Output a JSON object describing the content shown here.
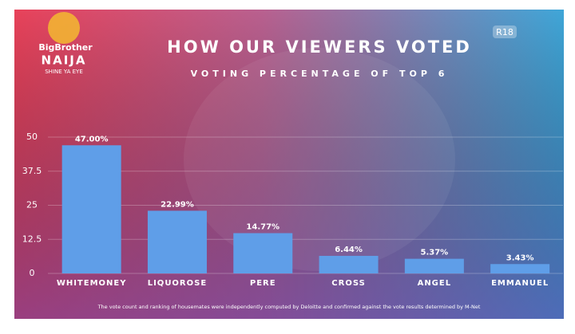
{
  "chart_data": {
    "type": "bar",
    "title": "HOW OUR VIEWERS VOTED",
    "subtitle": "VOTING PERCENTAGE OF TOP 6",
    "logo": [
      "BigBrother",
      "NAIJA",
      "SHINE YA EYE"
    ],
    "rating": "R18",
    "footnote": "The vote count and ranking of housemates were independently computed by Deloitte and confirmed against the vote results determined by M-Net",
    "categories": [
      "WHITEMONEY",
      "LIQUOROSE",
      "PERE",
      "CROSS",
      "ANGEL",
      "EMMANUEL"
    ],
    "values": [
      47.0,
      22.99,
      14.77,
      6.44,
      5.37,
      3.43
    ],
    "value_labels": [
      "47.00%",
      "22.99%",
      "14.77%",
      "6.44%",
      "5.37%",
      "3.43%"
    ],
    "color": "#5f9ee8",
    "ylim": [
      0,
      50
    ],
    "yticks": [
      0,
      12.5,
      25,
      37.5,
      50
    ],
    "grid": true
  }
}
